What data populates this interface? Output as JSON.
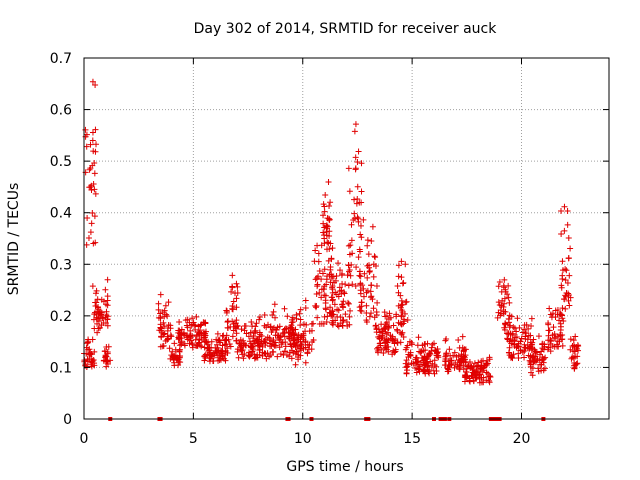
{
  "chart_data": {
    "type": "scatter",
    "title": "Day 302 of 2014, SRMTID for receiver auck",
    "xlabel": "GPS time / hours",
    "ylabel": "SRMTID / TECUs",
    "xlim": [
      0,
      24
    ],
    "ylim": [
      0,
      0.7
    ],
    "grid": true,
    "x_ticks": [
      0,
      5,
      10,
      15,
      20
    ],
    "x_tick_labels": [
      "0",
      "5",
      "10",
      "15",
      "20"
    ],
    "y_ticks": [
      0,
      0.1,
      0.2,
      0.3,
      0.4,
      0.5,
      0.6,
      0.7
    ],
    "y_tick_labels": [
      "0",
      "0.1",
      "0.2",
      "0.3",
      "0.4",
      "0.5",
      "0.6",
      "0.7"
    ],
    "marker": "plus",
    "marker_color": "#e00000",
    "series": [
      {
        "name": "SRMTID",
        "segments": [
          {
            "x0": 0.0,
            "x1": 0.5,
            "base": 0.11,
            "amp": 0.05
          },
          {
            "x0": 0.05,
            "x1": 0.55,
            "base": 0.4,
            "amp": 0.27
          },
          {
            "x0": 0.4,
            "x1": 1.1,
            "base": 0.19,
            "amp": 0.1
          },
          {
            "x0": 0.9,
            "x1": 1.2,
            "base": 0.11,
            "amp": 0.04
          },
          {
            "x0": 3.4,
            "x1": 4.0,
            "base": 0.15,
            "amp": 0.1
          },
          {
            "x0": 3.9,
            "x1": 4.4,
            "base": 0.11,
            "amp": 0.04
          },
          {
            "x0": 4.3,
            "x1": 5.6,
            "base": 0.15,
            "amp": 0.05
          },
          {
            "x0": 5.5,
            "x1": 6.6,
            "base": 0.12,
            "amp": 0.05
          },
          {
            "x0": 6.5,
            "x1": 7.1,
            "base": 0.16,
            "amp": 0.14
          },
          {
            "x0": 7.0,
            "x1": 8.6,
            "base": 0.13,
            "amp": 0.07
          },
          {
            "x0": 8.5,
            "x1": 9.6,
            "base": 0.14,
            "amp": 0.08
          },
          {
            "x0": 9.5,
            "x1": 10.5,
            "base": 0.13,
            "amp": 0.1
          },
          {
            "x0": 10.5,
            "x1": 11.4,
            "base": 0.22,
            "amp": 0.15
          },
          {
            "x0": 10.9,
            "x1": 11.3,
            "base": 0.36,
            "amp": 0.14
          },
          {
            "x0": 11.3,
            "x1": 12.2,
            "base": 0.2,
            "amp": 0.12
          },
          {
            "x0": 12.1,
            "x1": 12.7,
            "base": 0.3,
            "amp": 0.38
          },
          {
            "x0": 12.6,
            "x1": 13.4,
            "base": 0.22,
            "amp": 0.2
          },
          {
            "x0": 13.3,
            "x1": 14.4,
            "base": 0.14,
            "amp": 0.07
          },
          {
            "x0": 14.3,
            "x1": 14.8,
            "base": 0.18,
            "amp": 0.15
          },
          {
            "x0": 14.7,
            "x1": 15.6,
            "base": 0.1,
            "amp": 0.06
          },
          {
            "x0": 15.5,
            "x1": 16.2,
            "base": 0.1,
            "amp": 0.05
          },
          {
            "x0": 16.5,
            "x1": 17.5,
            "base": 0.1,
            "amp": 0.06
          },
          {
            "x0": 17.4,
            "x1": 18.6,
            "base": 0.08,
            "amp": 0.04
          },
          {
            "x0": 18.9,
            "x1": 19.5,
            "base": 0.18,
            "amp": 0.11
          },
          {
            "x0": 19.4,
            "x1": 20.5,
            "base": 0.13,
            "amp": 0.07
          },
          {
            "x0": 20.4,
            "x1": 21.1,
            "base": 0.1,
            "amp": 0.07
          },
          {
            "x0": 21.2,
            "x1": 21.9,
            "base": 0.15,
            "amp": 0.08
          },
          {
            "x0": 21.8,
            "x1": 22.3,
            "base": 0.22,
            "amp": 0.26
          },
          {
            "x0": 22.2,
            "x1": 22.6,
            "base": 0.11,
            "amp": 0.06
          }
        ],
        "zero_points": [
          1.2,
          3.45,
          3.5,
          9.3,
          9.35,
          10.4,
          12.9,
          13.0,
          16.0,
          16.3,
          16.4,
          16.5,
          16.7,
          18.6,
          18.7,
          18.8,
          18.9,
          19.0,
          21.0
        ]
      }
    ]
  }
}
